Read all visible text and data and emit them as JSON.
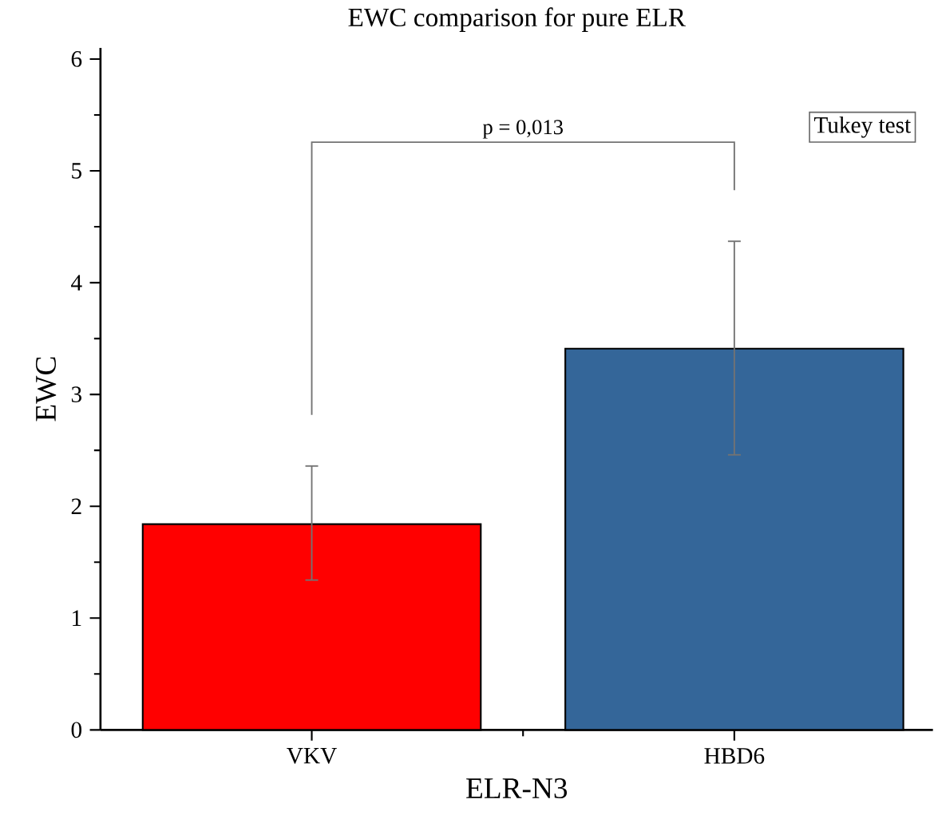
{
  "chart_data": {
    "type": "bar",
    "title": "EWC comparison for pure ELR",
    "xlabel": "ELR-N3",
    "ylabel": "EWC",
    "categories": [
      "VKV",
      "HBD6"
    ],
    "values": [
      1.84,
      3.41
    ],
    "colors": [
      "#ff0000",
      "#346699"
    ],
    "errors": [
      [
        1.34,
        2.36
      ],
      [
        2.46,
        4.37
      ]
    ],
    "ylim": [
      0,
      6.1
    ],
    "yticks": [
      0,
      1,
      2,
      3,
      4,
      5,
      6
    ],
    "annotations": [
      "p = 0,013",
      "Tukey test"
    ]
  }
}
